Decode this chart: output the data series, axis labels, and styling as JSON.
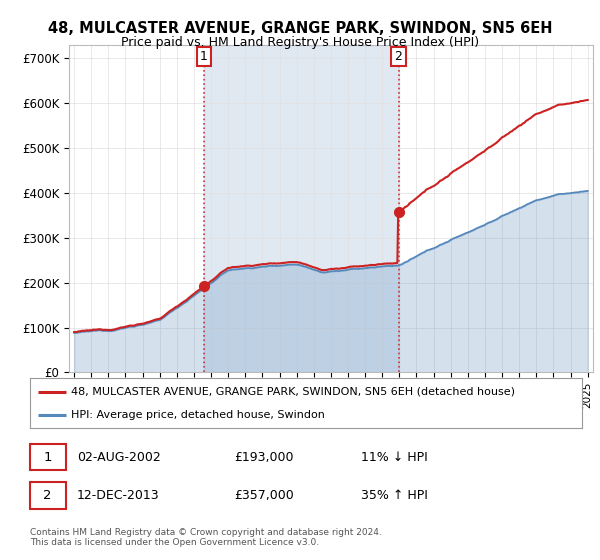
{
  "title": "48, MULCASTER AVENUE, GRANGE PARK, SWINDON, SN5 6EH",
  "subtitle": "Price paid vs. HM Land Registry's House Price Index (HPI)",
  "ylabel_ticks": [
    "£0",
    "£100K",
    "£200K",
    "£300K",
    "£400K",
    "£500K",
    "£600K",
    "£700K"
  ],
  "ytick_values": [
    0,
    100000,
    200000,
    300000,
    400000,
    500000,
    600000,
    700000
  ],
  "ylim": [
    0,
    730000
  ],
  "xlim_start": 1994.7,
  "xlim_end": 2025.3,
  "sale1_x": 2002.59,
  "sale1_y": 193000,
  "sale2_x": 2013.95,
  "sale2_y": 357000,
  "annotation1_date": "02-AUG-2002",
  "annotation1_price": "£193,000",
  "annotation1_hpi": "11% ↓ HPI",
  "annotation2_date": "12-DEC-2013",
  "annotation2_price": "£357,000",
  "annotation2_hpi": "35% ↑ HPI",
  "line_color_red": "#cc2222",
  "line_color_blue": "#5588bb",
  "fill_color_blue": "#ddeeff",
  "fill_color_between": "#e8f2fb",
  "dashed_color": "#cc2222",
  "legend_label_red": "48, MULCASTER AVENUE, GRANGE PARK, SWINDON, SN5 6EH (detached house)",
  "legend_label_blue": "HPI: Average price, detached house, Swindon",
  "footer": "Contains HM Land Registry data © Crown copyright and database right 2024.\nThis data is licensed under the Open Government Licence v3.0.",
  "background_color": "#ffffff",
  "grid_color": "#e0e0e0",
  "box_color": "#cc2222"
}
